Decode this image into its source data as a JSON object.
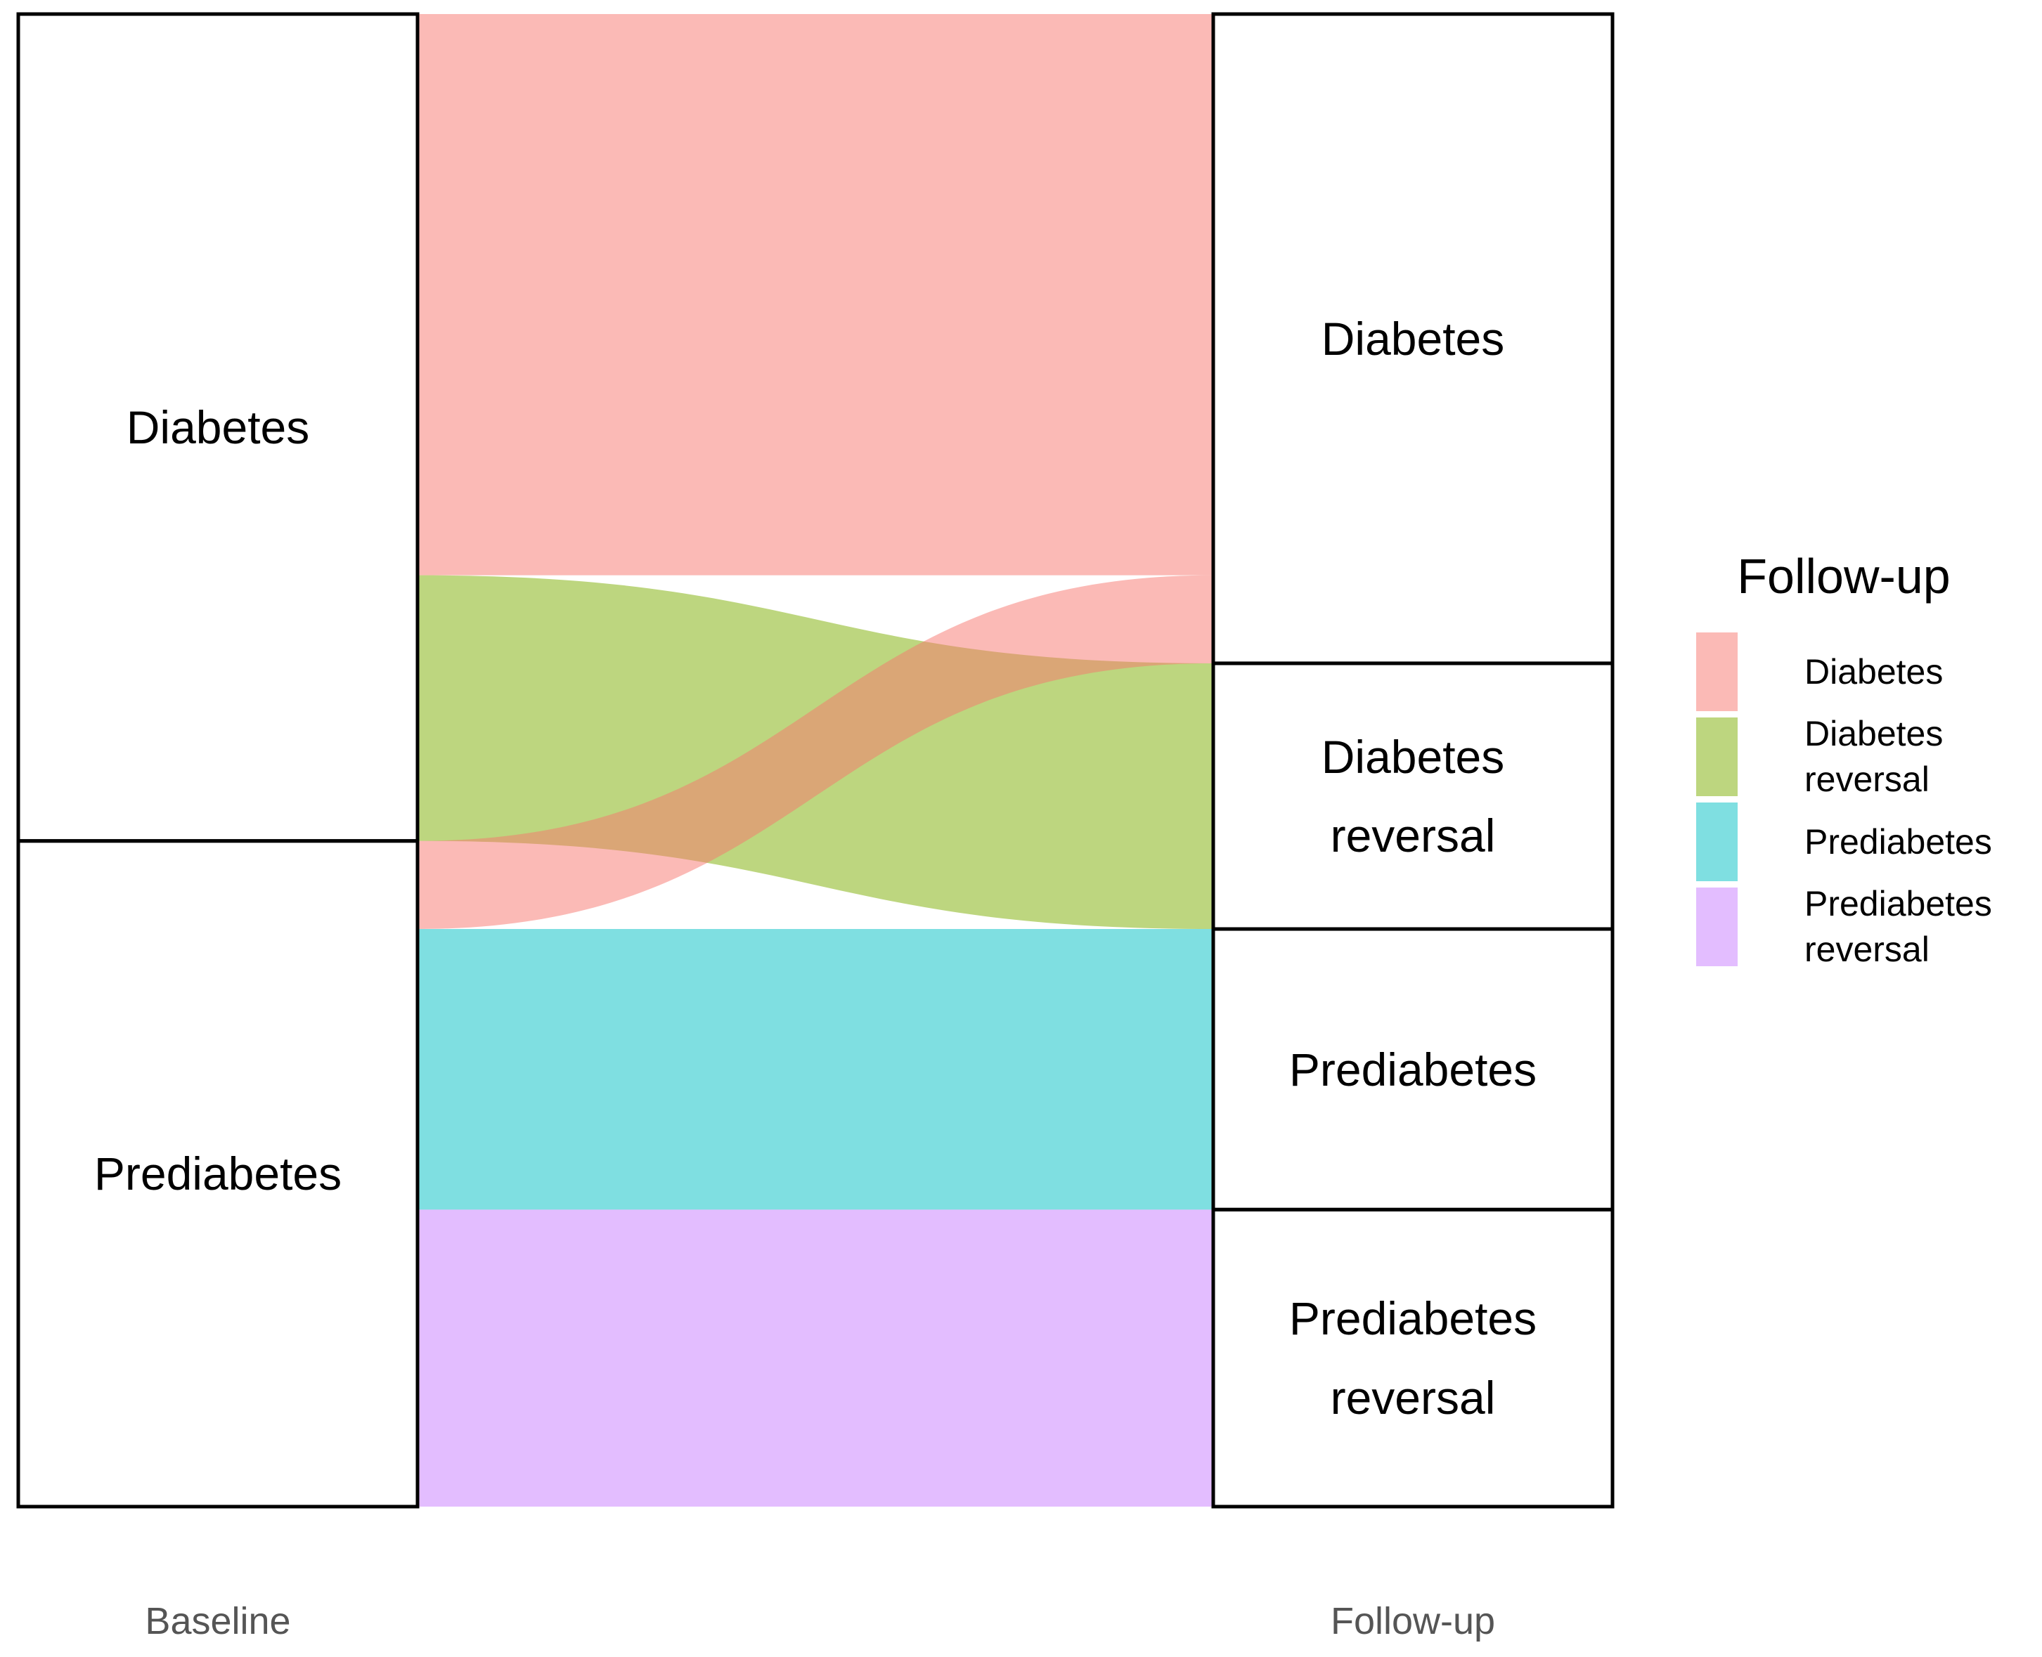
{
  "chart_data": {
    "type": "alluvial",
    "axes": [
      {
        "label": "Baseline",
        "nodes": [
          "Diabetes",
          "Prediabetes"
        ]
      },
      {
        "label": "Follow-up",
        "nodes": [
          "Diabetes",
          "Diabetes reversal",
          "Prediabetes",
          "Prediabetes reversal"
        ]
      }
    ],
    "flows": [
      {
        "from": "Diabetes",
        "to": "Diabetes",
        "value": 37.6
      },
      {
        "from": "Diabetes",
        "to": "Diabetes reversal",
        "value": 17.8
      },
      {
        "from": "Prediabetes",
        "to": "Diabetes",
        "value": 5.9
      },
      {
        "from": "Prediabetes",
        "to": "Prediabetes",
        "value": 18.8
      },
      {
        "from": "Prediabetes",
        "to": "Prediabetes reversal",
        "value": 19.9
      }
    ],
    "legend": {
      "title": "Follow-up",
      "position": "right",
      "entries": [
        {
          "name": "Diabetes",
          "color": "#F8766D"
        },
        {
          "name": "Diabetes reversal",
          "color": "#7CAE00"
        },
        {
          "name": "Prediabetes",
          "color": "#00BFC4"
        },
        {
          "name": "Prediabetes reversal",
          "color": "#C77CFF"
        }
      ]
    }
  }
}
